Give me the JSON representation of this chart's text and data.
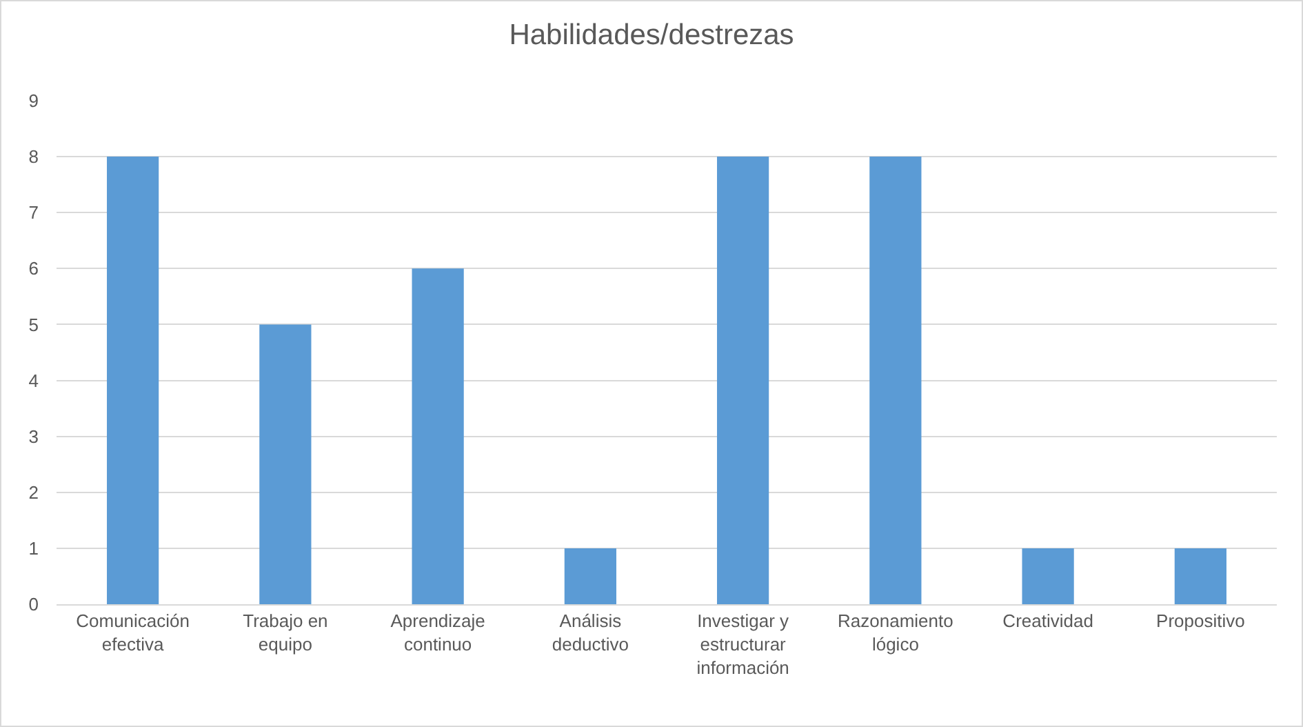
{
  "chart_data": {
    "type": "bar",
    "title": "Habilidades/destrezas",
    "categories": [
      "Comunicación efectiva",
      "Trabajo en equipo",
      "Aprendizaje continuo",
      "Análisis deductivo",
      "Investigar y estructurar información",
      "Razonamiento lógico",
      "Creatividad",
      "Propositivo"
    ],
    "values": [
      8,
      5,
      6,
      1,
      8,
      8,
      1,
      1
    ],
    "color": "#5b9bd5",
    "ylim": [
      0,
      9
    ],
    "yticks": [
      0,
      1,
      2,
      3,
      4,
      5,
      6,
      7,
      8,
      9
    ],
    "grid": "y",
    "legend": false
  }
}
